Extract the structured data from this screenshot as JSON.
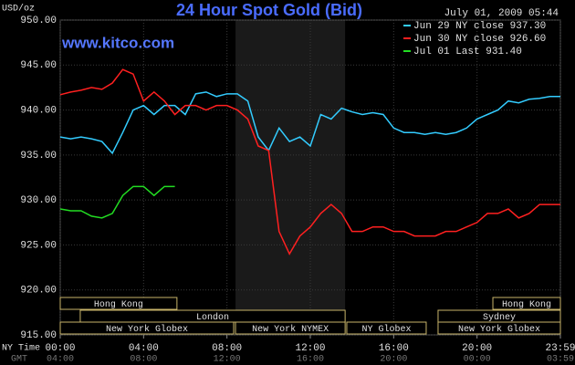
{
  "chart_data": {
    "type": "line",
    "title": "24 Hour Spot Gold (Bid)",
    "timestamp": "July 01, 2009 05:44",
    "ylabel": "USD/oz",
    "watermark": "www.kitco.com",
    "x_row_label": "NY Time",
    "gmt_row_label": "GMT",
    "x": [
      0,
      0.5,
      1,
      1.5,
      2,
      2.5,
      3,
      3.5,
      4,
      4.5,
      5,
      5.5,
      6,
      6.5,
      7,
      7.5,
      8,
      8.5,
      9,
      9.5,
      10,
      10.5,
      11,
      11.5,
      12,
      12.5,
      13,
      13.5,
      14,
      14.5,
      15,
      15.5,
      16,
      16.5,
      17,
      17.5,
      18,
      18.5,
      19,
      19.5,
      20,
      20.5,
      21,
      21.5,
      22,
      22.5,
      23,
      23.5,
      24
    ],
    "xlim": [
      0,
      24
    ],
    "xticks": [
      {
        "value": 0,
        "label": "00:00"
      },
      {
        "value": 4,
        "label": "04:00"
      },
      {
        "value": 8,
        "label": "08:00"
      },
      {
        "value": 12,
        "label": "12:00"
      },
      {
        "value": 16,
        "label": "16:00"
      },
      {
        "value": 20,
        "label": "20:00"
      },
      {
        "value": 24,
        "label": "23:59"
      }
    ],
    "gmt_ticks": [
      {
        "value": 0,
        "label": "04:00"
      },
      {
        "value": 4,
        "label": "08:00"
      },
      {
        "value": 8,
        "label": "12:00"
      },
      {
        "value": 12,
        "label": "16:00"
      },
      {
        "value": 16,
        "label": "20:00"
      },
      {
        "value": 20,
        "label": "00:00"
      },
      {
        "value": 24,
        "label": "03:59"
      }
    ],
    "ylim": [
      915,
      950
    ],
    "yticks": [
      {
        "value": 915,
        "label": "915.00"
      },
      {
        "value": 920,
        "label": "920.00"
      },
      {
        "value": 925,
        "label": "925.00"
      },
      {
        "value": 930,
        "label": "930.00"
      },
      {
        "value": 935,
        "label": "935.00"
      },
      {
        "value": 940,
        "label": "940.00"
      },
      {
        "value": 945,
        "label": "945.00"
      },
      {
        "value": 950,
        "label": "950.00"
      }
    ],
    "grid": true,
    "legend": "top-right",
    "series": [
      {
        "name": "Jun 29 NY close 937.30",
        "color": "#33ccff",
        "values": [
          937,
          936.8,
          937,
          936.8,
          936.5,
          935.2,
          937.5,
          940,
          940.5,
          939.5,
          940.5,
          940.5,
          939.5,
          941.8,
          942,
          941.5,
          941.8,
          941.8,
          941,
          937,
          935.5,
          938,
          936.5,
          937,
          936,
          939.5,
          939,
          940.2,
          939.8,
          939.5,
          939.7,
          939.5,
          938,
          937.5,
          937.5,
          937.3,
          937.5,
          937.3,
          937.5,
          938,
          939,
          939.5,
          940,
          941,
          940.8,
          941.2,
          941.3,
          941.5,
          941.5
        ]
      },
      {
        "name": "Jun 30 NY close 926.60",
        "color": "#ff2020",
        "values": [
          941.7,
          942,
          942.2,
          942.5,
          942.3,
          943,
          944.5,
          944,
          941,
          942,
          941,
          939.5,
          940.5,
          940.5,
          940,
          940.5,
          940.5,
          940,
          939,
          936,
          935.5,
          926.5,
          924,
          926,
          927,
          928.5,
          929.5,
          928.5,
          926.5,
          926.5,
          927,
          927,
          926.5,
          926.5,
          926,
          926,
          926,
          926.5,
          926.5,
          927,
          927.5,
          928.5,
          928.5,
          929,
          928,
          928.5,
          929.5,
          929.5,
          929.5
        ]
      },
      {
        "name": "Jul 01 Last 931.40",
        "color": "#22dd22",
        "values": [
          929,
          928.8,
          928.8,
          928.2,
          928,
          928.5,
          930.5,
          931.5,
          931.5,
          930.5,
          931.5,
          931.5,
          null,
          null,
          null,
          null,
          null,
          null,
          null,
          null,
          null,
          null,
          null,
          null,
          null,
          null,
          null,
          null,
          null,
          null,
          null,
          null,
          null,
          null,
          null,
          null,
          null,
          null,
          null,
          null,
          null,
          null,
          null,
          null,
          null,
          null,
          null,
          null,
          null
        ]
      }
    ],
    "sessions": [
      {
        "label": "Hong Kong",
        "start": 0,
        "end": 5.6,
        "row": 0
      },
      {
        "label": "Hong Kong",
        "start": 20.76,
        "end": 24,
        "row": 0
      },
      {
        "label": "London",
        "start": 0.96,
        "end": 13.67,
        "row": 1
      },
      {
        "label": "Sydney",
        "start": 18.13,
        "end": 24,
        "row": 1
      },
      {
        "label": "New York Globex",
        "start": 0,
        "end": 8.32,
        "row": 2
      },
      {
        "label": "New York NYMEX",
        "start": 8.41,
        "end": 13.67,
        "row": 2,
        "highlight": true
      },
      {
        "label": "NY Globex",
        "start": 13.75,
        "end": 17.56,
        "row": 2
      },
      {
        "label": "New York Globex",
        "start": 18.13,
        "end": 24,
        "row": 2
      }
    ]
  }
}
